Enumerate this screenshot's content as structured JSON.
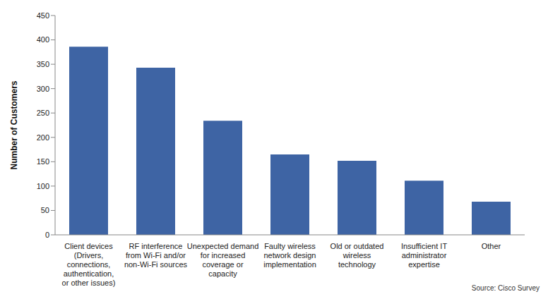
{
  "chart_data": {
    "type": "bar",
    "y_label": "Number of Customers",
    "source": "Source: Cisco Survey",
    "categories": [
      "Client devices (Drivers, connections, authentication, or other issues)",
      "RF interference from Wi-Fi and/or non-Wi-Fi sources",
      "Unexpected demand for increased coverage or capacity",
      "Faulty wireless network design implementation",
      "Old or outdated wireless technology",
      "Insufficient IT administrator expertise",
      "Other"
    ],
    "values": [
      386,
      343,
      234,
      165,
      152,
      111,
      68
    ],
    "color": "#3e64a4",
    "ylim": [
      0,
      450
    ],
    "yticks": [
      0,
      50,
      100,
      150,
      200,
      250,
      300,
      350,
      400,
      450
    ],
    "grid": false
  }
}
